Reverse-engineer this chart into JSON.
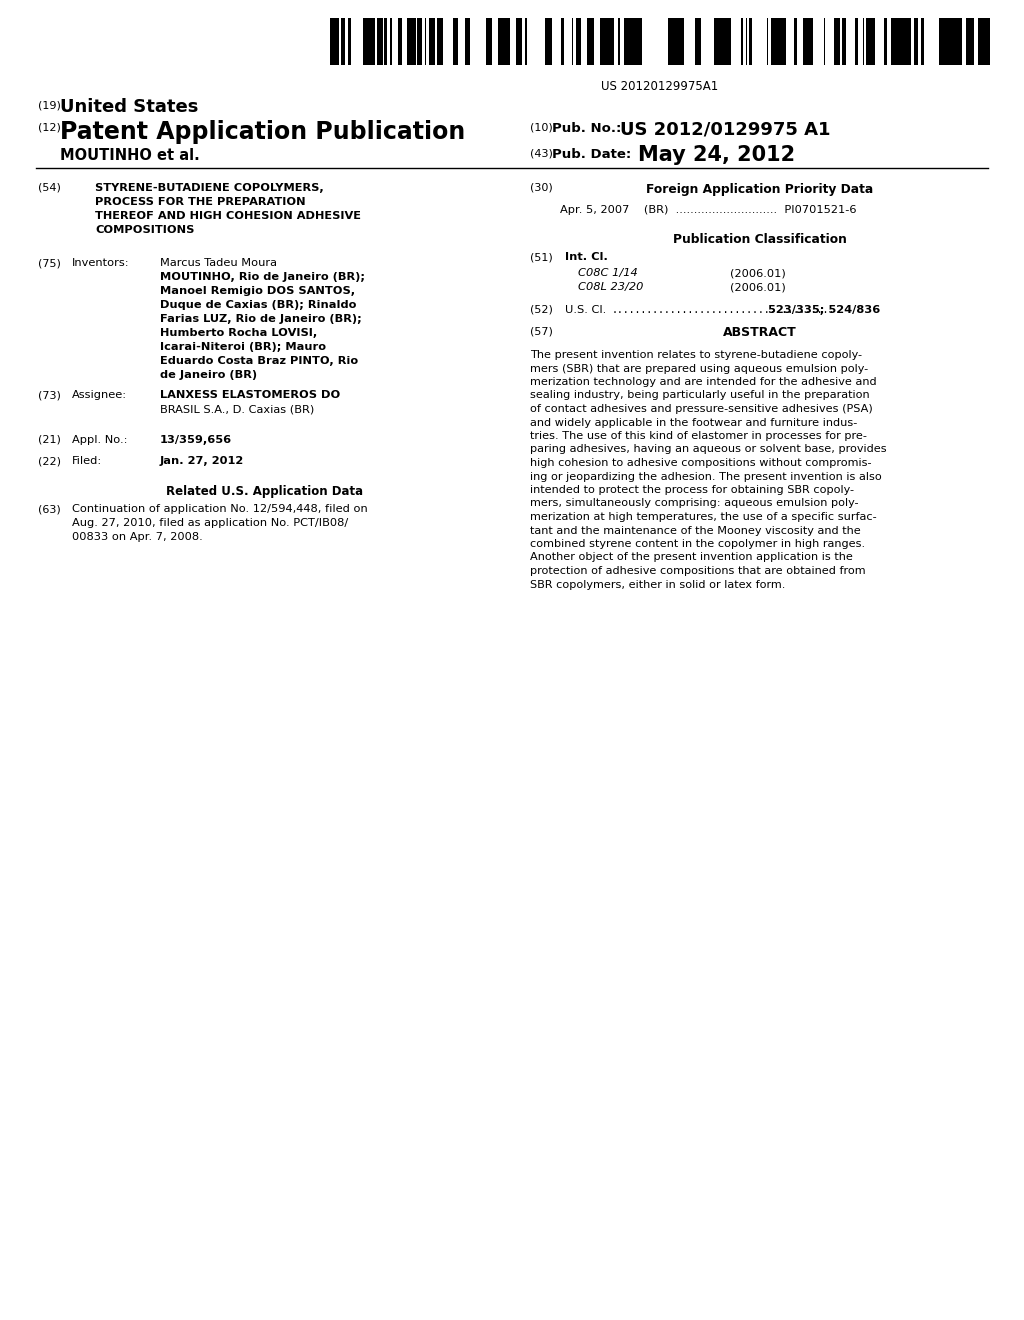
{
  "background_color": "#ffffff",
  "barcode_text": "US 20120129975A1",
  "header_19": "(19)",
  "header_19_text": "United States",
  "header_12": "(12)",
  "header_12_text": "Patent Application Publication",
  "header_10_sub": "(10)",
  "header_10_label": "Pub. No.:",
  "header_10_value": "US 2012/0129975 A1",
  "header_43_sub": "(43)",
  "header_43_label": "Pub. Date:",
  "header_43_value": "May 24, 2012",
  "header_author": "MOUTINHO et al.",
  "field_54_num": "(54)",
  "field_54_lines": [
    "STYRENE-BUTADIENE COPOLYMERS,",
    "PROCESS FOR THE PREPARATION",
    "THEREOF AND HIGH COHESION ADHESIVE",
    "COMPOSITIONS"
  ],
  "field_75_num": "(75)",
  "field_75_label": "Inventors:",
  "field_75_lines": [
    [
      "Marcus Tadeu Moura",
      false
    ],
    [
      "MOUTINHO",
      true
    ],
    [
      ", Rio de Janeiro (BR);",
      false
    ],
    [
      "Manoel Remigio ",
      false
    ],
    [
      "DOS SANTOS",
      true
    ],
    [
      ",",
      false
    ],
    [
      "Duque de Caxias (BR); ",
      false
    ],
    [
      "Rinaldo",
      false
    ],
    [
      "Farias ",
      false
    ],
    [
      "LUZ",
      true
    ],
    [
      ", Rio de Janeiro (BR);",
      false
    ],
    [
      "Humberto Rocha ",
      false
    ],
    [
      "LOVISI",
      true
    ],
    [
      ",",
      false
    ],
    [
      "Icarai-Niteroi (BR); ",
      false
    ],
    [
      "Mauro",
      false
    ],
    [
      "Eduardo Costa Braz ",
      false
    ],
    [
      "PINTO",
      true
    ],
    [
      ", Rio",
      false
    ],
    [
      "de Janeiro (BR)",
      false
    ]
  ],
  "field_75_display_lines": [
    "Marcus Tadeu Moura",
    "MOUTINHO, Rio de Janeiro (BR);",
    "Manoel Remigio DOS SANTOS,",
    "Duque de Caxias (BR); Rinaldo",
    "Farias LUZ, Rio de Janeiro (BR);",
    "Humberto Rocha LOVISI,",
    "Icarai-Niteroi (BR); Mauro",
    "Eduardo Costa Braz PINTO, Rio",
    "de Janeiro (BR)"
  ],
  "field_73_num": "(73)",
  "field_73_label": "Assignee:",
  "field_73_lines": [
    "LANXESS ELASTOMEROS DO",
    "BRASIL S.A., D. Caxias (BR)"
  ],
  "field_21_num": "(21)",
  "field_21_label": "Appl. No.:",
  "field_21_value": "13/359,656",
  "field_22_num": "(22)",
  "field_22_label": "Filed:",
  "field_22_value": "Jan. 27, 2012",
  "related_heading": "Related U.S. Application Data",
  "field_63_num": "(63)",
  "field_63_lines": [
    "Continuation of application No. 12/594,448, filed on",
    "Aug. 27, 2010, filed as application No. PCT/IB08/",
    "00833 on Apr. 7, 2008."
  ],
  "field_30_num": "(30)",
  "field_30_heading": "Foreign Application Priority Data",
  "field_30_line": "Apr. 5, 2007    (BR)  ............................  PI0701521-6",
  "pub_class_heading": "Publication Classification",
  "field_51_num": "(51)",
  "field_51_label": "Int. Cl.",
  "field_51_c08c": "C08C 1/14",
  "field_51_c08l": "C08L 23/20",
  "field_51_year1": "(2006.01)",
  "field_51_year2": "(2006.01)",
  "field_52_num": "(52)",
  "field_52_label": "U.S. Cl.",
  "field_52_dots": "......................................",
  "field_52_value": "523/335; 524/836",
  "field_57_num": "(57)",
  "field_57_heading": "ABSTRACT",
  "abstract_lines": [
    "The present invention relates to styrene-butadiene copoly-",
    "mers (SBR) that are prepared using aqueous emulsion poly-",
    "merization technology and are intended for the adhesive and",
    "sealing industry, being particularly useful in the preparation",
    "of contact adhesives and pressure-sensitive adhesives (PSA)",
    "and widely applicable in the footwear and furniture indus-",
    "tries. The use of this kind of elastomer in processes for pre-",
    "paring adhesives, having an aqueous or solvent base, provides",
    "high cohesion to adhesive compositions without compromis-",
    "ing or jeopardizing the adhesion. The present invention is also",
    "intended to protect the process for obtaining SBR copoly-",
    "mers, simultaneously comprising: aqueous emulsion poly-",
    "merization at high temperatures, the use of a specific surfac-",
    "tant and the maintenance of the Mooney viscosity and the",
    "combined styrene content in the copolymer in high ranges.",
    "Another object of the present invention application is the",
    "protection of adhesive compositions that are obtained from",
    "SBR copolymers, either in solid or latex form."
  ]
}
